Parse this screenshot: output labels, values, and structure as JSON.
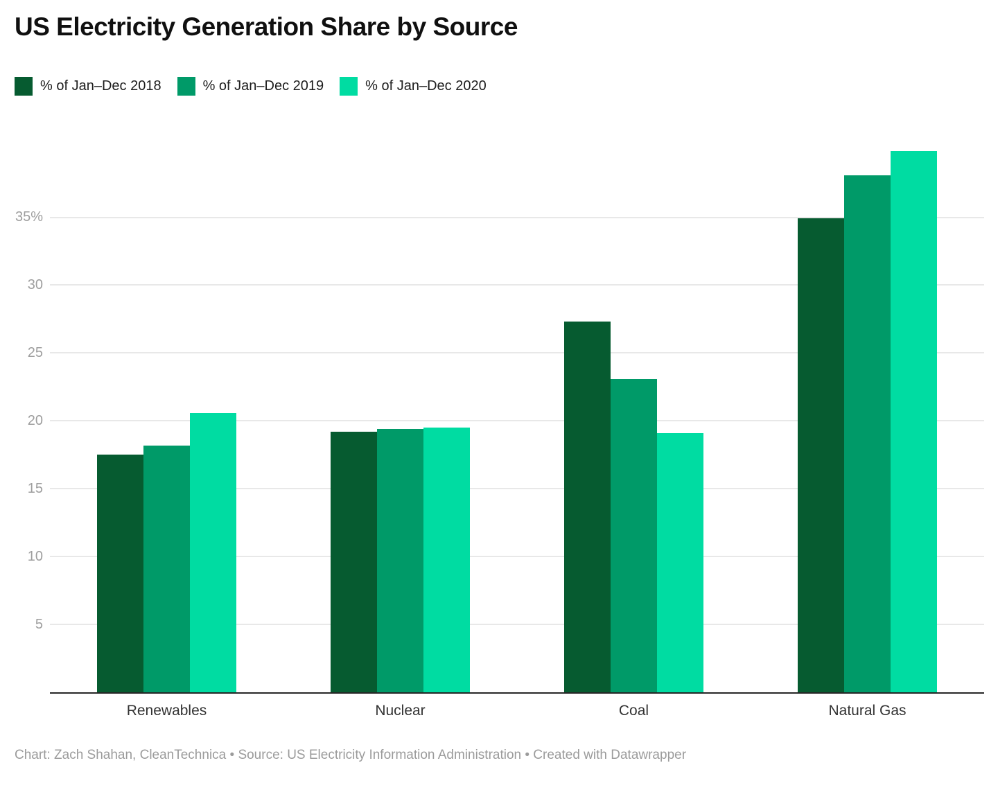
{
  "header": {
    "title": "US Electricity Generation Share by Source"
  },
  "legend": {
    "items": [
      {
        "id": "2018",
        "label": "% of Jan–Dec 2018",
        "color": "#065b30"
      },
      {
        "id": "2019",
        "label": "% of Jan–Dec 2019",
        "color": "#009a68"
      },
      {
        "id": "2020",
        "label": "% of Jan–Dec 2020",
        "color": "#00dca2"
      }
    ]
  },
  "chart_data": {
    "type": "bar",
    "title": "US Electricity Generation Share by Source",
    "categories": [
      "Renewables",
      "Nuclear",
      "Coal",
      "Natural Gas"
    ],
    "series": [
      {
        "name": "% of Jan–Dec 2018",
        "color": "#065b30",
        "values": [
          17.5,
          19.2,
          27.3,
          34.9
        ]
      },
      {
        "name": "% of Jan–Dec 2019",
        "color": "#009a68",
        "values": [
          18.2,
          19.4,
          23.1,
          38.1
        ]
      },
      {
        "name": "% of Jan–Dec 2020",
        "color": "#00dca2",
        "values": [
          20.6,
          19.5,
          19.1,
          39.9
        ]
      }
    ],
    "xlabel": "",
    "ylabel": "",
    "unit": "%",
    "ylim": [
      0,
      41.3
    ],
    "yticks": [
      5,
      10,
      15,
      20,
      25,
      30,
      35
    ],
    "ytick_labels": [
      "5",
      "10",
      "15",
      "20",
      "25",
      "30",
      "35%"
    ],
    "grid": true,
    "legend_position": "top-left"
  },
  "footer": {
    "credit": "Chart: Zach Shahan, CleanTechnica • Source: US Electricity Information Administration • Created with Datawrapper"
  }
}
